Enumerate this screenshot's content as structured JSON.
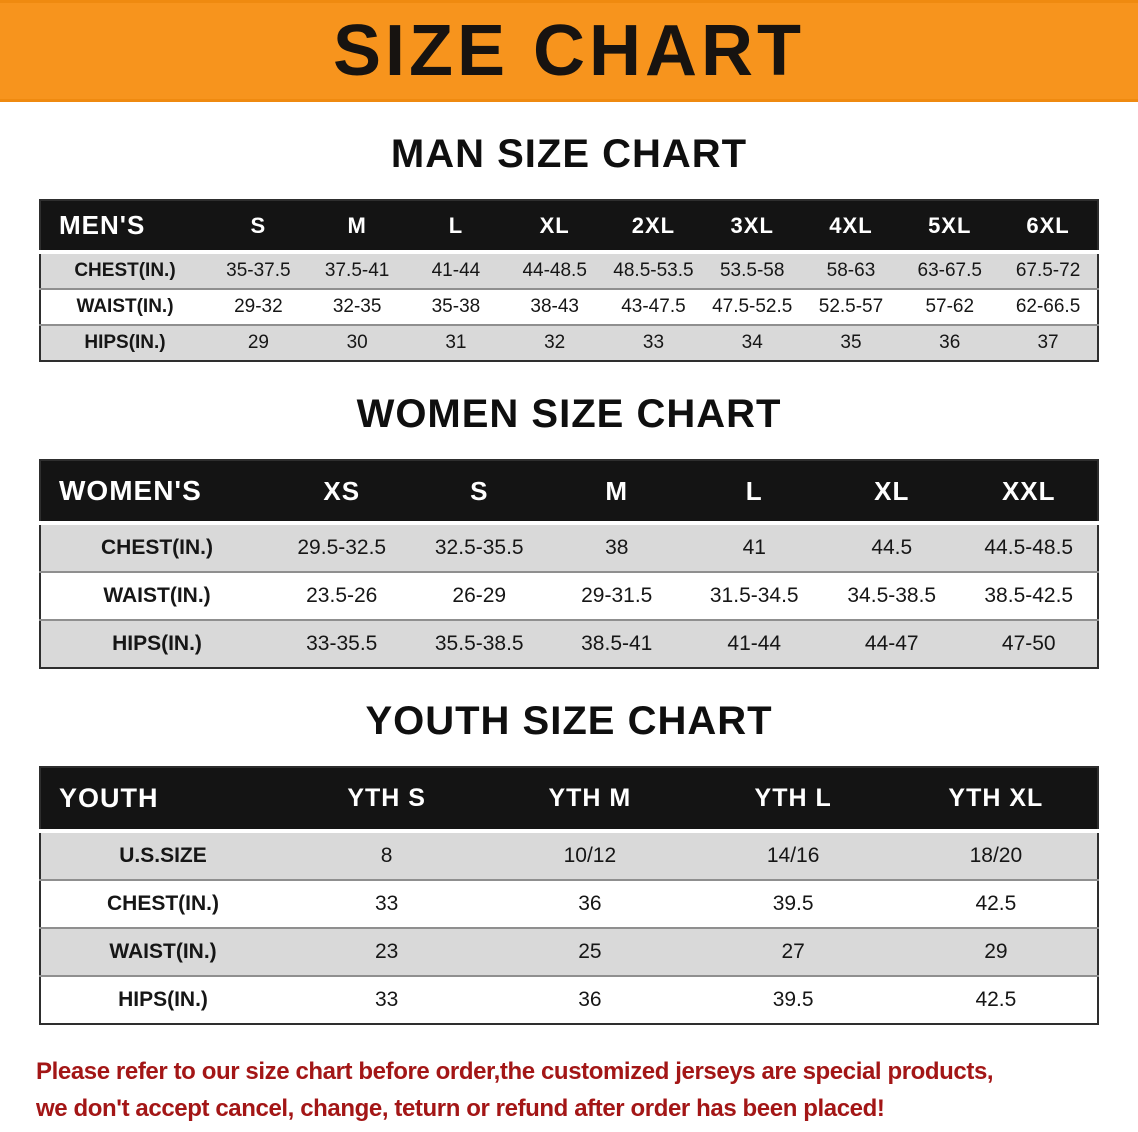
{
  "banner": {
    "title": "SIZE CHART",
    "bg_color": "#f7941d"
  },
  "sections": [
    {
      "heading": "MAN SIZE CHART",
      "table": {
        "header": [
          "MEN'S",
          "S",
          "M",
          "L",
          "XL",
          "2XL",
          "3XL",
          "4XL",
          "5XL",
          "6XL"
        ],
        "rows": [
          {
            "label": "CHEST(IN.)",
            "values": [
              "35-37.5",
              "37.5-41",
              "41-44",
              "44-48.5",
              "48.5-53.5",
              "53.5-58",
              "58-63",
              "63-67.5",
              "67.5-72"
            ]
          },
          {
            "label": "WAIST(IN.)",
            "values": [
              "29-32",
              "32-35",
              "35-38",
              "38-43",
              "43-47.5",
              "47.5-52.5",
              "52.5-57",
              "57-62",
              "62-66.5"
            ]
          },
          {
            "label": "HIPS(IN.)",
            "values": [
              "29",
              "30",
              "31",
              "32",
              "33",
              "34",
              "35",
              "36",
              "37"
            ]
          }
        ]
      }
    },
    {
      "heading": "WOMEN SIZE CHART",
      "table": {
        "header": [
          "WOMEN'S",
          "XS",
          "S",
          "M",
          "L",
          "XL",
          "XXL"
        ],
        "rows": [
          {
            "label": "CHEST(IN.)",
            "values": [
              "29.5-32.5",
              "32.5-35.5",
              "38",
              "41",
              "44.5",
              "44.5-48.5"
            ]
          },
          {
            "label": "WAIST(IN.)",
            "values": [
              "23.5-26",
              "26-29",
              "29-31.5",
              "31.5-34.5",
              "34.5-38.5",
              "38.5-42.5"
            ]
          },
          {
            "label": "HIPS(IN.)",
            "values": [
              "33-35.5",
              "35.5-38.5",
              "38.5-41",
              "41-44",
              "44-47",
              "47-50"
            ]
          }
        ]
      }
    },
    {
      "heading": "YOUTH SIZE CHART",
      "table": {
        "header": [
          "YOUTH",
          "YTH S",
          "YTH M",
          "YTH L",
          "YTH XL"
        ],
        "rows": [
          {
            "label": "U.S.SIZE",
            "values": [
              "8",
              "10/12",
              "14/16",
              "18/20"
            ]
          },
          {
            "label": "CHEST(IN.)",
            "values": [
              "33",
              "36",
              "39.5",
              "42.5"
            ]
          },
          {
            "label": "WAIST(IN.)",
            "values": [
              "23",
              "25",
              "27",
              "29"
            ]
          },
          {
            "label": "HIPS(IN.)",
            "values": [
              "33",
              "36",
              "39.5",
              "42.5"
            ]
          }
        ]
      }
    }
  ],
  "notice": {
    "line1": "Please refer to our size chart before order,the customized jerseys are special products,",
    "line2": "we don't accept cancel, change, teturn or refund after order has been placed!"
  },
  "colors": {
    "banner_orange": "#f7941d",
    "table_header_black": "#141414",
    "row_stripe_gray": "#d9d9d9",
    "notice_red": "#a31616"
  }
}
